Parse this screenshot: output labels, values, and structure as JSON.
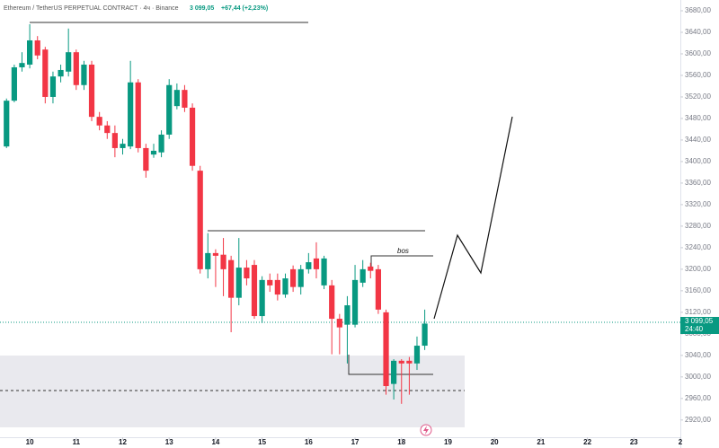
{
  "header": {
    "symbol": "Ethereum / TetherUS PERPETUAL CONTRACT · 4ч · Binance",
    "price": "3 099,05",
    "change": "+67,44 (+2,23%)"
  },
  "chart_data": {
    "type": "candlestick",
    "x": [
      9.5,
      9.667,
      9.833,
      10,
      10.167,
      10.333,
      10.5,
      10.667,
      10.833,
      11,
      11.167,
      11.333,
      11.5,
      11.667,
      11.833,
      12,
      12.167,
      12.333,
      12.5,
      12.667,
      12.833,
      13,
      13.167,
      13.333,
      13.5,
      13.667,
      13.833,
      14,
      14.167,
      14.333,
      14.5,
      14.667,
      14.833,
      15,
      15.167,
      15.333,
      15.5,
      15.667,
      15.833,
      16,
      16.167,
      16.333,
      16.5,
      16.667,
      16.833,
      17,
      17.167,
      17.333,
      17.5,
      17.667,
      17.833,
      18,
      18.167,
      18.333,
      18.5
    ],
    "open": [
      3428,
      3513,
      3575,
      3580,
      3625,
      3608,
      3520,
      3558,
      3567,
      3603,
      3542,
      3580,
      3483,
      3467,
      3453,
      3425,
      3428,
      3547,
      3425,
      3413,
      3417,
      3450,
      3503,
      3533,
      3500,
      3383,
      3200,
      3230,
      3227,
      3217,
      3147,
      3203,
      3208,
      3113,
      3180,
      3180,
      3153,
      3200,
      3167,
      3200,
      3220,
      3170,
      3170,
      3108,
      3097,
      3097,
      3175,
      3205,
      3200,
      3120,
      2987,
      3030,
      3030,
      3025,
      3058
    ],
    "high": [
      3517,
      3580,
      3603,
      3655,
      3633,
      3613,
      3567,
      3580,
      3647,
      3608,
      3587,
      3587,
      3492,
      3475,
      3467,
      3442,
      3587,
      3553,
      3433,
      3433,
      3458,
      3553,
      3545,
      3542,
      3508,
      3392,
      3267,
      3237,
      3258,
      3225,
      3258,
      3217,
      3217,
      3187,
      3192,
      3192,
      3192,
      3207,
      3208,
      3230,
      3250,
      3225,
      3180,
      3117,
      3150,
      3208,
      3217,
      3212,
      3208,
      3125,
      3033,
      3033,
      3037,
      3075,
      3125
    ],
    "low": [
      3425,
      3510,
      3567,
      3573,
      3590,
      3508,
      3508,
      3547,
      3558,
      3533,
      3533,
      3475,
      3458,
      3442,
      3408,
      3413,
      3423,
      3417,
      3370,
      3407,
      3408,
      3442,
      3497,
      3492,
      3383,
      3192,
      3183,
      3167,
      3150,
      3083,
      3133,
      3170,
      3108,
      3100,
      3158,
      3142,
      3147,
      3158,
      3153,
      3192,
      3183,
      3163,
      3042,
      3042,
      3025,
      3092,
      3167,
      3183,
      3117,
      2967,
      2958,
      2950,
      2967,
      3013,
      3050
    ],
    "close": [
      3513,
      3575,
      3583,
      3625,
      3597,
      3520,
      3558,
      3570,
      3603,
      3542,
      3580,
      3483,
      3467,
      3453,
      3425,
      3433,
      3547,
      3425,
      3383,
      3420,
      3450,
      3542,
      3533,
      3500,
      3392,
      3200,
      3230,
      3225,
      3200,
      3147,
      3203,
      3183,
      3113,
      3180,
      3170,
      3153,
      3183,
      3167,
      3200,
      3213,
      3200,
      3220,
      3108,
      3092,
      3133,
      3180,
      3200,
      3197,
      3125,
      2983,
      3030,
      3025,
      3025,
      3058,
      3099.05
    ],
    "up_color": "#089981",
    "down_color": "#f23645",
    "xlim": [
      9.36,
      24.0
    ],
    "xticks": [
      10,
      11,
      12,
      13,
      14,
      15,
      16,
      17,
      18,
      19,
      20,
      21,
      22,
      23,
      {
        "value": 24,
        "label": "2"
      }
    ],
    "ylim": [
      2888,
      3700
    ],
    "yticks": [
      {
        "value": 3680,
        "label": "3680,00"
      },
      {
        "value": 3640,
        "label": "3640,00"
      },
      {
        "value": 3600,
        "label": "3600,00"
      },
      {
        "value": 3560,
        "label": "3560,00"
      },
      {
        "value": 3520,
        "label": "3520,00"
      },
      {
        "value": 3480,
        "label": "3480,00"
      },
      {
        "value": 3440,
        "label": "3440,00"
      },
      {
        "value": 3400,
        "label": "3400,00"
      },
      {
        "value": 3360,
        "label": "3360,00"
      },
      {
        "value": 3320,
        "label": "3320,00"
      },
      {
        "value": 3280,
        "label": "3280,00"
      },
      {
        "value": 3240,
        "label": "3240,00"
      },
      {
        "value": 3200,
        "label": "3200,00"
      },
      {
        "value": 3160,
        "label": "3160,00"
      },
      {
        "value": 3120,
        "label": "3120,00"
      },
      {
        "value": 3080,
        "label": "3080,00"
      },
      {
        "value": 3040,
        "label": "3040,00"
      },
      {
        "value": 3000,
        "label": "3000,00"
      },
      {
        "value": 2960,
        "label": "2960,00"
      },
      {
        "value": 2920,
        "label": "2920,00"
      }
    ],
    "last_price": {
      "value": 3099.05,
      "label": "3 099,05"
    },
    "countdown": "24:40",
    "annotation": "bos"
  }
}
